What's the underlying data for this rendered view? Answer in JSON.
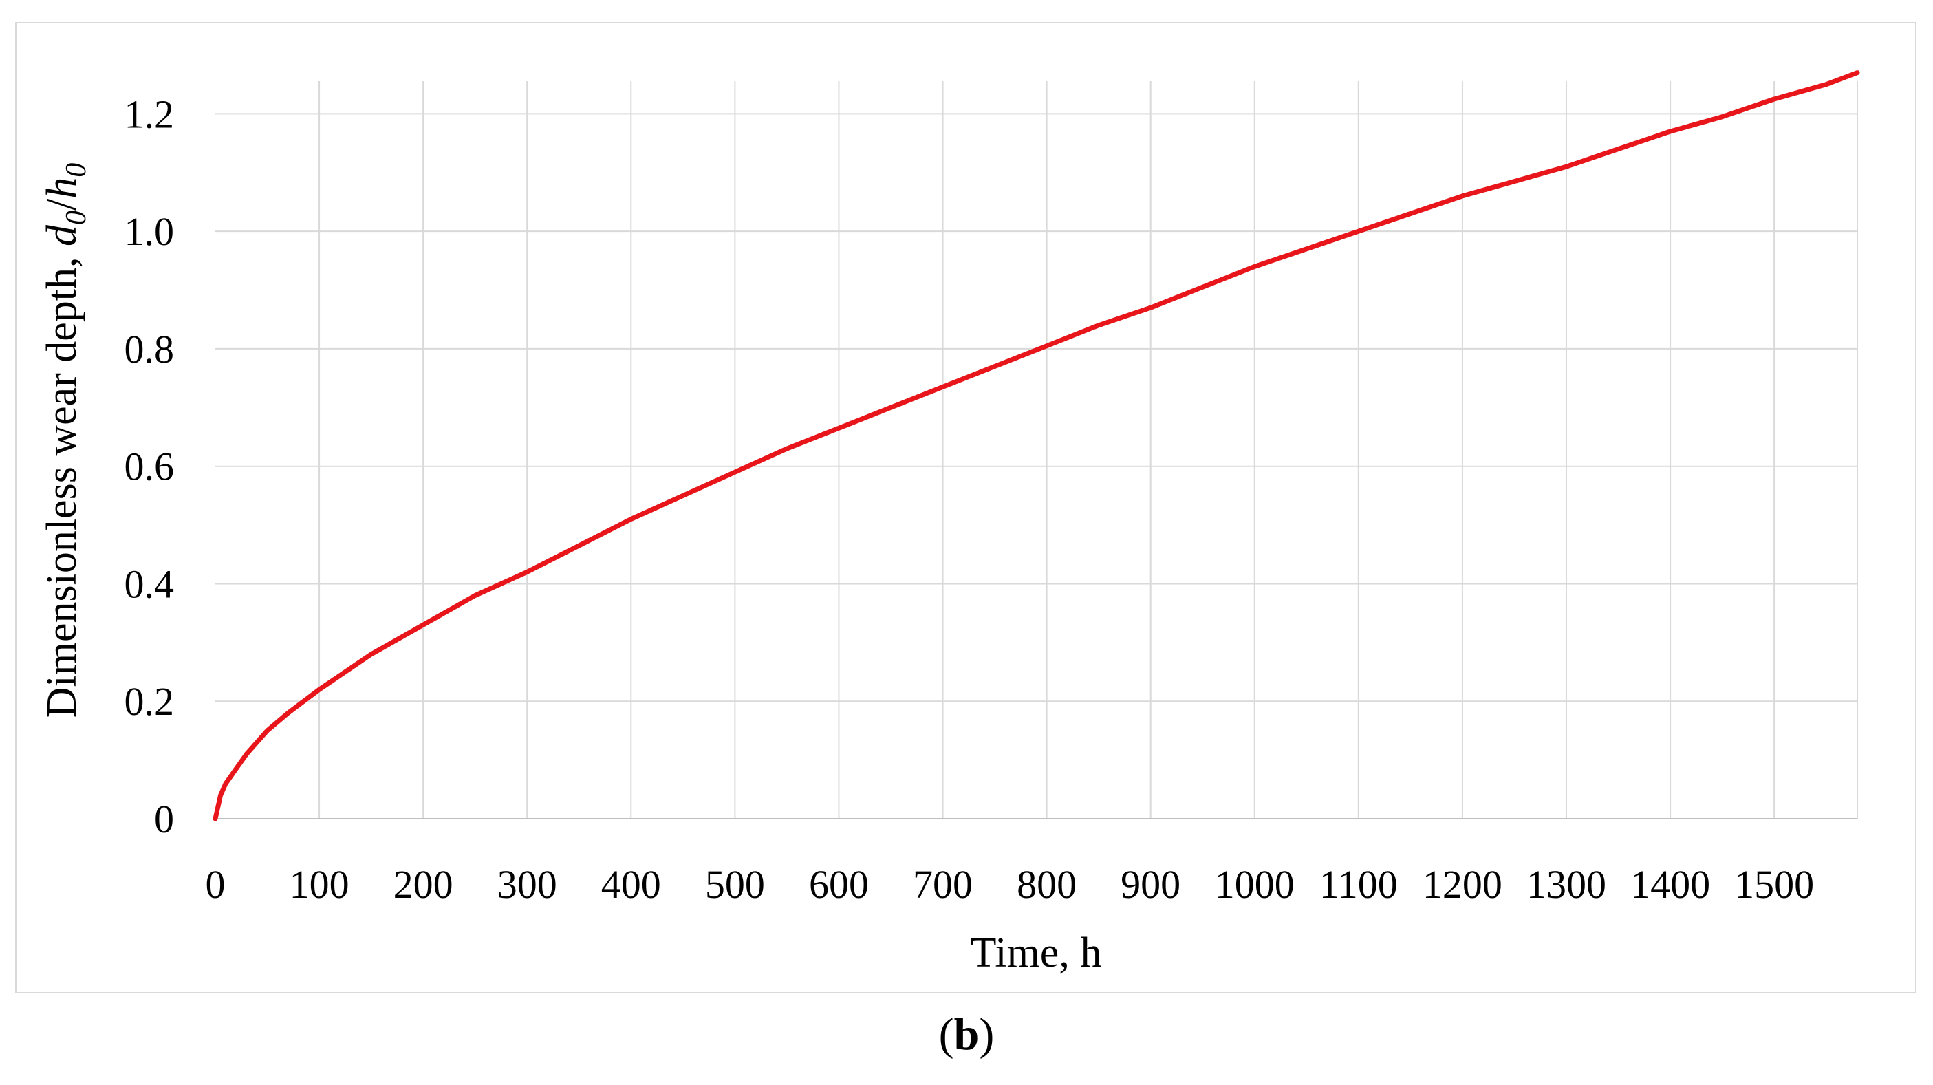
{
  "chart_data": {
    "type": "line",
    "title": "",
    "xlabel": "Time, h",
    "ylabel_prefix": "Dimensionless wear depth, ",
    "ylabel_var_num": "d",
    "ylabel_var_num_sub": "0",
    "ylabel_var_den": "h",
    "ylabel_var_den_sub": "0",
    "xlim": [
      0,
      1580
    ],
    "ylim": [
      0,
      1.3
    ],
    "x_ticks": [
      0,
      100,
      200,
      300,
      400,
      500,
      600,
      700,
      800,
      900,
      1000,
      1100,
      1200,
      1300,
      1400,
      1500
    ],
    "x_tick_labels": [
      "0",
      "100",
      "200",
      "300",
      "400",
      "500",
      "600",
      "700",
      "800",
      "900",
      "1000",
      "1100",
      "1200",
      "1300",
      "1400",
      "1500"
    ],
    "y_ticks": [
      0,
      0.2,
      0.4,
      0.6,
      0.8,
      1.0,
      1.2
    ],
    "y_tick_labels": [
      "0",
      "0.2",
      "0.4",
      "0.6",
      "0.8",
      "1.0",
      "1.2"
    ],
    "grid": true,
    "legend": "none",
    "series": [
      {
        "color": "#e8151b",
        "x": [
          0,
          5,
          10,
          20,
          30,
          50,
          70,
          100,
          150,
          200,
          250,
          300,
          350,
          400,
          450,
          500,
          550,
          600,
          650,
          700,
          750,
          800,
          850,
          900,
          950,
          1000,
          1050,
          1100,
          1150,
          1200,
          1250,
          1300,
          1350,
          1400,
          1450,
          1500,
          1550,
          1580
        ],
        "y": [
          0,
          0.04,
          0.06,
          0.085,
          0.11,
          0.15,
          0.18,
          0.22,
          0.28,
          0.33,
          0.38,
          0.42,
          0.465,
          0.51,
          0.55,
          0.59,
          0.63,
          0.665,
          0.7,
          0.735,
          0.77,
          0.805,
          0.84,
          0.87,
          0.905,
          0.94,
          0.97,
          1.0,
          1.03,
          1.06,
          1.085,
          1.11,
          1.14,
          1.17,
          1.195,
          1.225,
          1.25,
          1.27
        ]
      }
    ]
  },
  "panel_label": "b"
}
